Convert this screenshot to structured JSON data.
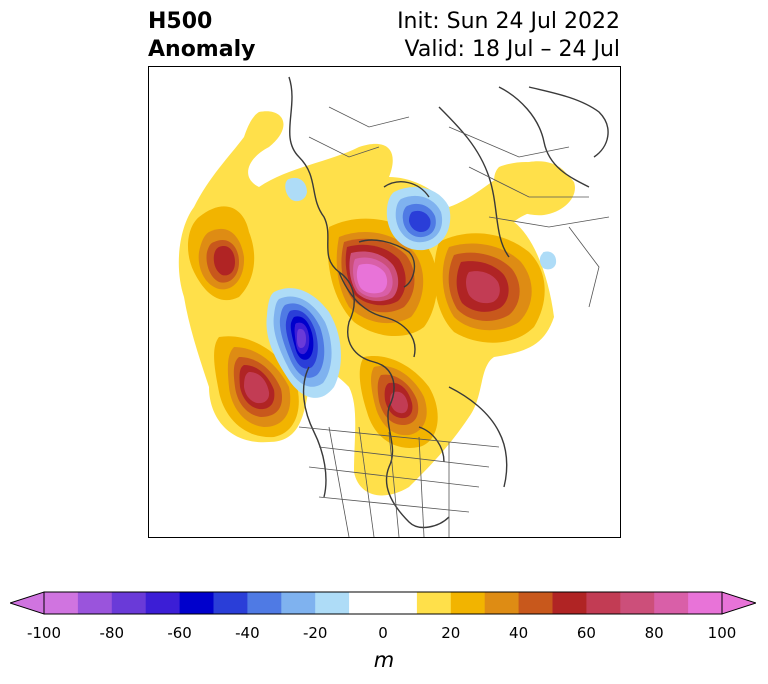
{
  "title": {
    "left_line1": "H500",
    "left_line2": "Anomaly",
    "right_line1": "Init: Sun 24 Jul 2022",
    "right_line2": "Valid: 18 Jul – 24 Jul"
  },
  "colorbar": {
    "units": "m",
    "ticks": [
      "-100",
      "-80",
      "-60",
      "-40",
      "-20",
      "0",
      "20",
      "40",
      "60",
      "80",
      "100"
    ],
    "tick_values": [
      -100,
      -80,
      -60,
      -40,
      -20,
      0,
      20,
      40,
      60,
      80,
      100
    ],
    "range": [
      -100,
      100
    ],
    "interval": 10,
    "extend": "both",
    "colors": [
      "#d074e0",
      "#9a54dc",
      "#6a3ad8",
      "#3c1ed6",
      "#0000cc",
      "#2a3ed8",
      "#4f7ae4",
      "#7fb2ef",
      "#aedcf7",
      "#ffffff",
      "#ffffff",
      "#ffe04a",
      "#f2b400",
      "#de8c14",
      "#c8581c",
      "#b02424",
      "#c23c54",
      "#cc4f7a",
      "#d95fa8",
      "#e873d8"
    ]
  },
  "map": {
    "projection": "north-polar-stereographic",
    "field": "500 hPa geopotential height anomaly",
    "features": [
      "coastlines",
      "country-borders",
      "us-state-borders"
    ]
  }
}
